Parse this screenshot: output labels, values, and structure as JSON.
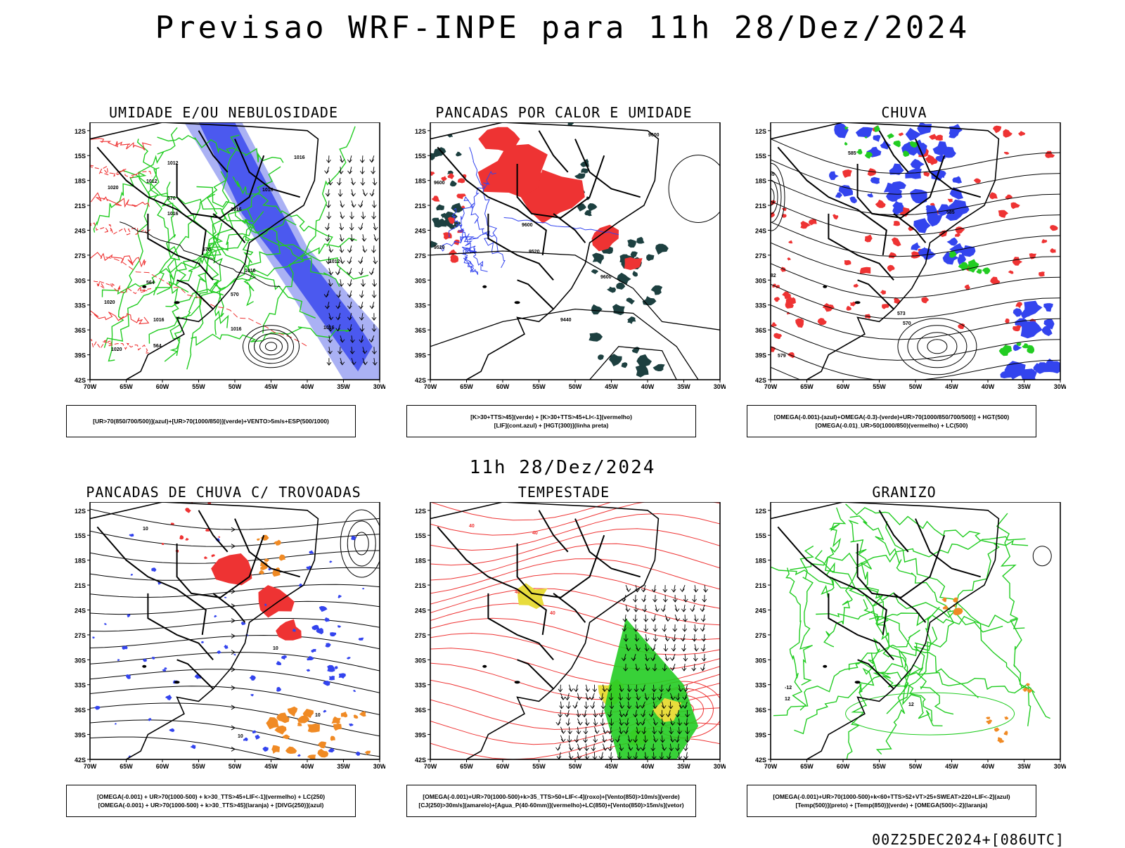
{
  "header": {
    "title": "Previsao WRF-INPE  para 11h 28/Dez/2024",
    "subtitle": "11h 28/Dez/2024",
    "footer": "00Z25DEC2024+[086UTC]"
  },
  "axes": {
    "lat_labels": [
      "12S",
      "15S",
      "18S",
      "21S",
      "24S",
      "27S",
      "30S",
      "33S",
      "36S",
      "39S",
      "42S"
    ],
    "lon_labels": [
      "70W",
      "65W",
      "60W",
      "55W",
      "50W",
      "45W",
      "40W",
      "35W",
      "30W"
    ]
  },
  "colors": {
    "blue": "#3344ee",
    "light_blue": "#8d97f0",
    "green": "#22cc22",
    "red": "#ee3333",
    "dark_teal": "#1d4040",
    "orange": "#f08a24",
    "yellow": "#e8dc3c",
    "black": "#000000"
  },
  "panels": [
    {
      "title": "UMIDADE E/OU NEBULOSIDADE",
      "legend": [
        "[UR>70(850/700/500)](azul)+[UR>70(1000/850)](verde)+VENTO>5m/s+ESP(500/1000)"
      ],
      "contour_labels": [
        "1016",
        "1016",
        "1012",
        "1016",
        "1016",
        "1020",
        "1016",
        "1016",
        "1016",
        "1012",
        "1020",
        "1012",
        "570",
        "570",
        "564",
        "570",
        "564",
        "1016",
        "1020"
      ]
    },
    {
      "title": "PANCADAS POR CALOR E UMIDADE",
      "legend": [
        "[K>30+TTS>45](verde) + [K>30+TTS>45+LI<-1](vermelho)",
        "[LIF](cont.azul) + [HGT(300)](linha preta)"
      ],
      "contour_labels": [
        "9600",
        "9600",
        "9600",
        "9520",
        "9600",
        "9440",
        "9440",
        "9520"
      ]
    },
    {
      "title": "CHUVA",
      "legend": [
        "[OMEGA(-0.001)-(azul)+OMEGA(-0.3)-(verde)+UR>70(1000/850/700/500)] + HGT(500)",
        "[OMEGA(-0.01)_UR>50(1000/850)(vermelho) + LC(500)"
      ],
      "contour_labels": [
        "585",
        "585",
        "582",
        "582",
        "585",
        "573",
        "570",
        "579",
        "582"
      ]
    },
    {
      "title": "PANCADAS DE CHUVA C/ TROVOADAS",
      "legend": [
        "[OMEGA(-0.001) + UR>70(1000-500) + k>30_TTS>45+LIF<-1](vermelho) + LC(250)",
        "[OMEGA(-0.001) + UR>70(1000-500) + k>30_TTS>45](laranja) + [DIVG(250)](azul)"
      ],
      "contour_labels": [
        "10",
        "10",
        "10",
        "10"
      ]
    },
    {
      "title": "TEMPESTADE",
      "legend": [
        "[OMEGA(-0.001)+UR>70(1000-500)+k>35_TTS>50+LIF<-4](roxo)+[Vento(850)>10m/s](verde)",
        "[CJ(250)>30m/s](amarelo)+[Agua_P(40-60mm)](vermelho)+LC(850)+[Vento(850)>15m/s](vetor)"
      ],
      "contour_labels": [
        "40",
        "40",
        "40",
        "40"
      ]
    },
    {
      "title": "GRANIZO",
      "legend": [
        "[OMEGA(-0.001)+UR>70(1000-500)+k<60+TTS>52+VT>25+SWEAT>220+LIF<-2](azul)",
        "[Temp(500)](preto) + [Temp(850)](verde) + [OMEGA(500)<-2](laranja)"
      ],
      "contour_labels": [
        "-12",
        "12",
        "12"
      ]
    }
  ]
}
